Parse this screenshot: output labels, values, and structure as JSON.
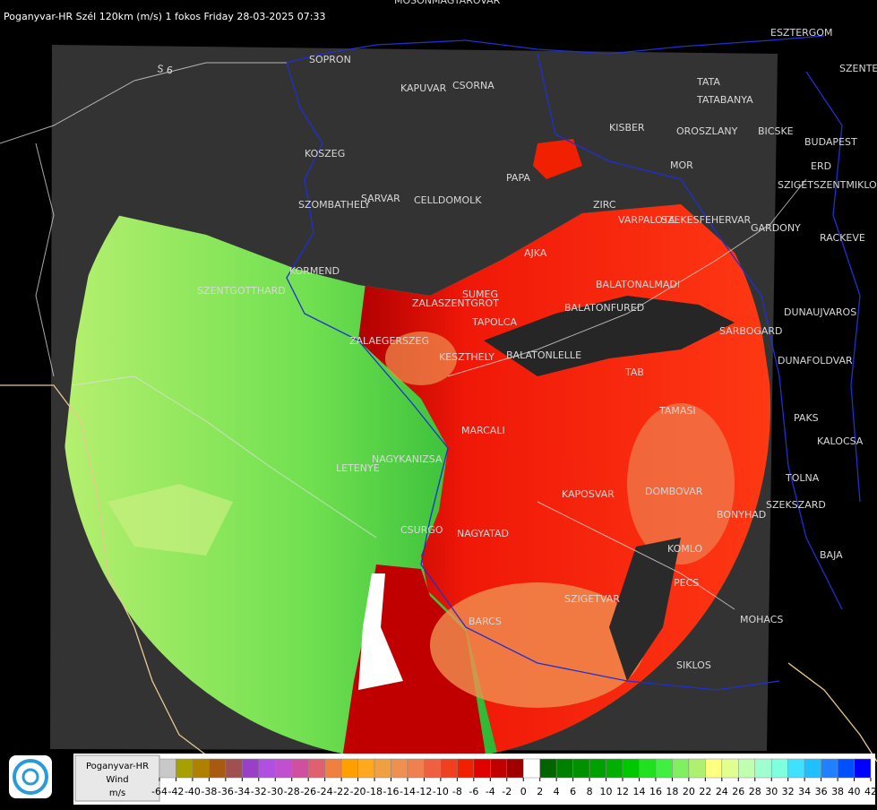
{
  "title": "Poganyvar-HR Szél 120km (m/s) 1 fokos Friday 28-03-2025 07:33",
  "road_label": "S 6",
  "cities": [
    "MOSONMAGYAROVAR",
    "SOPRON",
    "KAPUVAR",
    "CSORNA",
    "ESZTERGOM",
    "SZENTENDRE",
    "TATA",
    "TATABANYA",
    "KISBER",
    "OROSZLANY",
    "BICSKE",
    "BUDAPEST",
    "ERD",
    "MOR",
    "SZIGETSZENTMIKLOS",
    "KOSZEG",
    "PAPA",
    "SZOMBATHELY",
    "SARVAR",
    "CELLDOMOLK",
    "ZIRC",
    "VARPALOTA",
    "SZEKESFEHERVAR",
    "GARDONY",
    "RACKEVE",
    "AJKA",
    "KORMEND",
    "SZENTGOTTHARD",
    "SUMEG",
    "ZALASZENTGROT",
    "BALATONALMADI",
    "DUNAUJVAROS",
    "TAPOLCA",
    "BALATONFURED",
    "SARBOGARD",
    "ZALAEGERSZEG",
    "KESZTHELY",
    "BALATONLELLE",
    "DUNAFOLDVAR",
    "TAB",
    "TAMASI",
    "PAKS",
    "MARCALI",
    "KALOCSA",
    "NAGYKANIZSA",
    "LETENYE",
    "TOLNA",
    "KAPOSVAR",
    "DOMBOVAR",
    "SZEKSZARD",
    "BONYHAD",
    "CSURGO",
    "NAGYATAD",
    "KOMLO",
    "BAJA",
    "PECS",
    "SZIGETVAR",
    "MOHACS",
    "BARCS",
    "SIKLOS"
  ],
  "legend": {
    "labels": [
      "Poganyvar-HR",
      "Wind",
      "m/s"
    ],
    "colors": [
      "#c8c8c8",
      "#a8a000",
      "#b08000",
      "#a85a10",
      "#a05050",
      "#9a40c8",
      "#b050e0",
      "#c050d0",
      "#d050a0",
      "#e06070",
      "#f08040",
      "#ffa000",
      "#ffa820",
      "#f0a040",
      "#f09050",
      "#f08050",
      "#f06040",
      "#f04020",
      "#f02000",
      "#e00000",
      "#c00000",
      "#a00000",
      "#ffffff",
      "#006400",
      "#008000",
      "#009000",
      "#00a000",
      "#00b000",
      "#00c800",
      "#20e020",
      "#40f040",
      "#80f060",
      "#b0f070",
      "#ffff80",
      "#e0ff90",
      "#c0ffb0",
      "#a0ffd0",
      "#80ffe0",
      "#40e0ff",
      "#20c0ff",
      "#2080ff",
      "#0050ff",
      "#0000ff"
    ],
    "ticks": [
      -64,
      -42,
      -40,
      -38,
      -36,
      -34,
      -32,
      -30,
      -28,
      -26,
      -24,
      -22,
      -20,
      -18,
      -16,
      -14,
      -12,
      -10,
      -8,
      -6,
      -4,
      -2,
      0,
      2,
      4,
      6,
      8,
      10,
      12,
      14,
      16,
      18,
      20,
      22,
      24,
      26,
      28,
      30,
      32,
      34,
      36,
      38,
      40,
      42
    ]
  }
}
